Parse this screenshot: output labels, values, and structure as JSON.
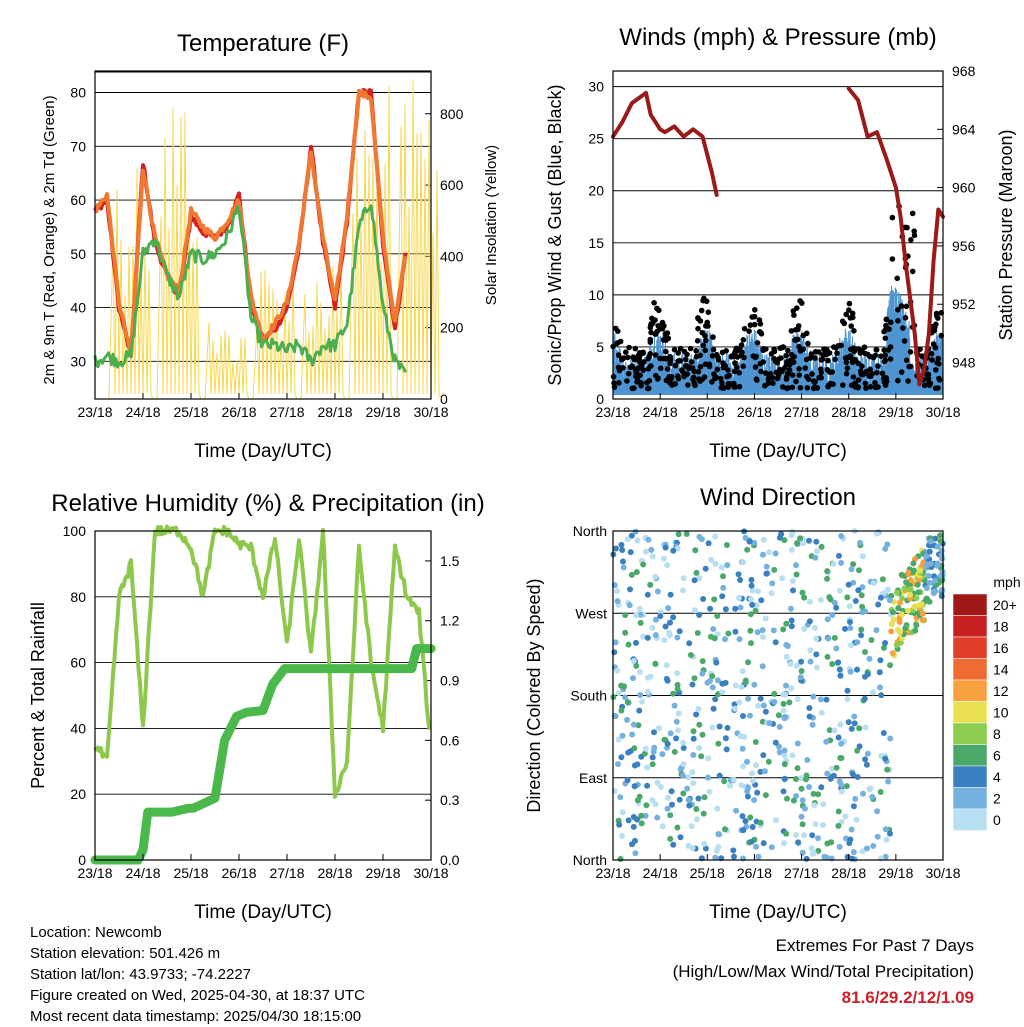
{
  "x_ticks": [
    "23/18",
    "24/18",
    "25/18",
    "26/18",
    "27/18",
    "28/18",
    "29/18",
    "30/18"
  ],
  "xlabel": "Time (Day/UTC)",
  "temperature_panel": {
    "title": "Temperature (F)",
    "ylabel_left": "2m & 9m T (Red, Orange) & 2m Td (Green)",
    "ylabel_right": "Solar Insolation (Yellow)",
    "left_ticks": [
      "30",
      "40",
      "50",
      "60",
      "70",
      "80"
    ],
    "right_ticks": [
      "0",
      "200",
      "400",
      "600",
      "800"
    ]
  },
  "wind_panel": {
    "title": "Winds (mph) & Pressure (mb)",
    "ylabel_left": "Sonic/Prop Wind & Gust (Blue, Black)",
    "ylabel_right": "Station Pressure (Maroon)",
    "left_ticks": [
      "0",
      "5",
      "10",
      "15",
      "20",
      "25",
      "30"
    ],
    "right_ticks": [
      "948",
      "952",
      "956",
      "960",
      "964",
      "968"
    ]
  },
  "rh_panel": {
    "title": "Relative Humidity (%) & Precipitation (in)",
    "ylabel_left": "Percent & Total Rainfall",
    "left_ticks": [
      "0",
      "20",
      "40",
      "60",
      "80",
      "100"
    ],
    "right_ticks": [
      "0.0",
      "0.3",
      "0.6",
      "0.9",
      "1.2",
      "1.5"
    ]
  },
  "direction_panel": {
    "title": "Wind Direction",
    "ylabel_left": "Direction (Colored By Speed)",
    "dir_ticks": [
      "North",
      "East",
      "South",
      "West",
      "North"
    ],
    "legend_title": "mph",
    "legend_labels": [
      "20+",
      "18",
      "16",
      "14",
      "12",
      "10",
      "8",
      "6",
      "4",
      "2",
      "0"
    ],
    "legend_colors": [
      "#a01818",
      "#c62020",
      "#e0402a",
      "#ee6a30",
      "#f6a040",
      "#e8e050",
      "#8ccc50",
      "#4aa868",
      "#3a7fc0",
      "#74b0e0",
      "#b8def2"
    ]
  },
  "footer": {
    "location": "Location: Newcomb",
    "elevation": "Station elevation: 501.426 m",
    "latlon": "Station lat/lon: 43.9733; -74.2227",
    "created": "Figure created on Wed, 2025-04-30, at 18:37 UTC",
    "recent": "Most recent data timestamp: 2025/04/30 18:15:00"
  },
  "extremes": {
    "line1": "Extremes For Past 7 Days",
    "line2": "(High/Low/Max Wind/Total Precipitation)",
    "values": "81.6/29.2/12/1.09"
  },
  "chart_data": [
    {
      "type": "line",
      "title": "Temperature (F)",
      "xlabel": "Time (Day/UTC)",
      "ylabel": "2m & 9m T (Red, Orange) & 2m Td (Green)",
      "y2label": "Solar Insolation (Yellow)",
      "ylim": [
        23,
        84
      ],
      "y2lim": [
        0,
        920
      ],
      "x": [
        0,
        0.25,
        0.5,
        0.75,
        1,
        1.25,
        1.5,
        1.75,
        2,
        2.25,
        2.5,
        2.75,
        3,
        3.25,
        3.5,
        3.75,
        4,
        4.25,
        4.5,
        4.75,
        5,
        5.25,
        5.5,
        5.75,
        6,
        6.25,
        6.5,
        6.75,
        7
      ],
      "series": [
        {
          "name": "2m T",
          "color": "#d42020",
          "values": [
            58,
            60,
            40,
            31,
            67,
            52,
            46,
            42,
            57,
            54,
            53,
            55,
            61,
            41,
            34,
            36,
            40,
            51,
            70,
            52,
            40,
            56,
            80,
            80,
            52,
            36,
            52,
            null,
            null
          ]
        },
        {
          "name": "9m T",
          "color": "#f07830",
          "values": [
            58,
            61,
            41,
            31,
            66,
            53,
            46,
            43,
            58,
            55,
            53,
            56,
            60,
            42,
            34,
            37,
            41,
            52,
            69,
            53,
            41,
            57,
            80,
            79,
            53,
            37,
            52,
            null,
            null
          ]
        },
        {
          "name": "2m Td",
          "color": "#4cae4c",
          "values": [
            30,
            31,
            30,
            31,
            50,
            53,
            46,
            42,
            50,
            49,
            50,
            53,
            59,
            38,
            33,
            33,
            32,
            33,
            30,
            33,
            33,
            37,
            55,
            60,
            40,
            30,
            27,
            null,
            null
          ]
        }
      ],
      "insolation_peaks": [
        {
          "x": 0.75,
          "y": 720
        },
        {
          "x": 1.75,
          "y": 920
        },
        {
          "x": 2.75,
          "y": 230
        },
        {
          "x": 3.75,
          "y": 400
        },
        {
          "x": 4.75,
          "y": 400
        },
        {
          "x": 5.75,
          "y": 890
        },
        {
          "x": 6.75,
          "y": 900
        }
      ]
    },
    {
      "type": "line",
      "title": "Winds (mph) & Pressure (mb)",
      "xlabel": "Time (Day/UTC)",
      "ylabel": "Sonic/Prop Wind & Gust (Blue, Black)",
      "y2label": "Station Pressure (Maroon)",
      "ylim": [
        0,
        31.5
      ],
      "y2lim": [
        945.5,
        968
      ],
      "pressure": {
        "name": "Station Pressure",
        "color": "#9a1a1a",
        "x": [
          0,
          0.2,
          0.4,
          0.7,
          0.8,
          1.0,
          1.1,
          1.3,
          1.5,
          1.7,
          1.9,
          2.1,
          2.2,
          4.8,
          5.0,
          5.2,
          5.4,
          5.6,
          5.8,
          6.0,
          6.1,
          6.2,
          6.4,
          6.5,
          6.6,
          6.7,
          6.8,
          6.9,
          7.0
        ],
        "y": [
          963.5,
          964.5,
          965.8,
          966.5,
          965.0,
          964.0,
          963.8,
          964.2,
          963.5,
          964.0,
          963.5,
          961.0,
          959.5,
          null,
          966.8,
          966.0,
          963.5,
          963.8,
          962.0,
          960.0,
          958.0,
          955.0,
          950.0,
          946.5,
          947.5,
          950.0,
          955.0,
          958.5,
          958.0
        ]
      },
      "gust_note": "black dots; gusts range 0–29 mph, max ~29",
      "wind_note": "blue; sustained 0–12 mph"
    },
    {
      "type": "line",
      "title": "Relative Humidity (%) & Precipitation (in)",
      "xlabel": "Time (Day/UTC)",
      "ylabel": "Percent & Total Rainfall",
      "ylim": [
        0,
        100
      ],
      "y2lim": [
        0,
        1.65
      ],
      "rh": {
        "name": "Relative Humidity",
        "color": "#8cc84a",
        "x": [
          0,
          0.25,
          0.5,
          0.75,
          1,
          1.25,
          1.5,
          1.75,
          2,
          2.25,
          2.5,
          2.75,
          3,
          3.25,
          3.5,
          3.75,
          4,
          4.25,
          4.5,
          4.75,
          5,
          5.25,
          5.5,
          5.75,
          6,
          6.25,
          6.5,
          6.75,
          7
        ],
        "y": [
          35,
          30,
          80,
          90,
          40,
          100,
          100,
          100,
          95,
          80,
          100,
          100,
          96,
          95,
          80,
          98,
          65,
          98,
          62,
          100,
          20,
          30,
          95,
          60,
          40,
          95,
          80,
          75,
          33
        ]
      },
      "precip": {
        "name": "Total Precipitation",
        "color": "#4ab84a",
        "x": [
          0,
          0.9,
          1.0,
          1.1,
          1.6,
          1.95,
          2.05,
          2.5,
          2.7,
          2.95,
          3.15,
          3.5,
          3.7,
          3.95,
          4.15,
          6.6,
          6.7,
          7.0
        ],
        "y": [
          0,
          0,
          0.05,
          0.24,
          0.24,
          0.26,
          0.26,
          0.31,
          0.6,
          0.72,
          0.74,
          0.75,
          0.88,
          0.96,
          0.96,
          0.96,
          1.06,
          1.06
        ]
      }
    },
    {
      "type": "scatter",
      "title": "Wind Direction",
      "xlabel": "Time (Day/UTC)",
      "ylabel": "Direction (Colored By Speed)",
      "ylim": [
        0,
        360
      ],
      "y_categories": [
        "North",
        "East",
        "South",
        "West",
        "North"
      ],
      "note": "points colored by wind speed (mph); directions scatter across all quadrants, cluster near West at 28/18–29/18 with speeds 6–12 mph"
    }
  ]
}
